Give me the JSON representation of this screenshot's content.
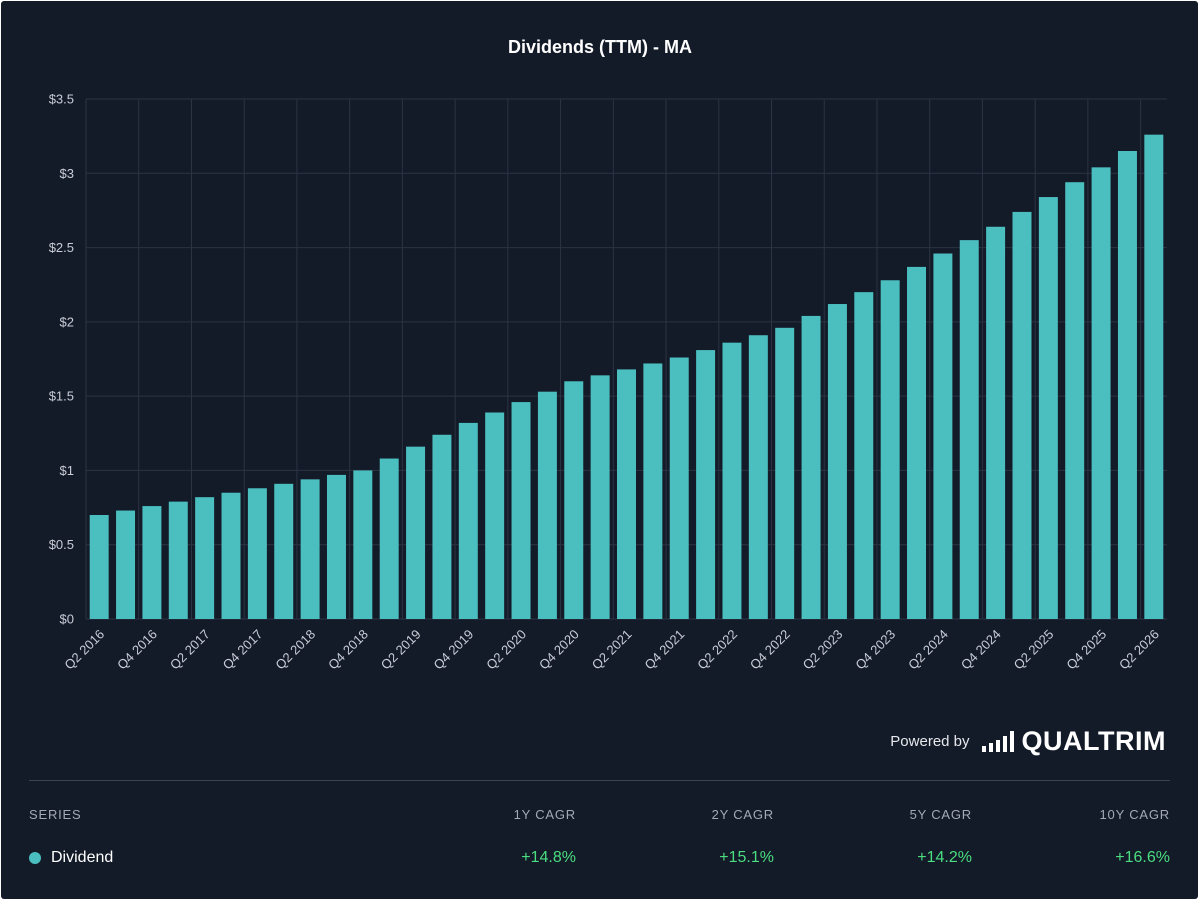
{
  "chart_data": {
    "type": "bar",
    "title": "Dividends (TTM) - MA",
    "xlabel": "",
    "ylabel": "",
    "ylim": [
      0,
      3.5
    ],
    "yticks": [
      0,
      0.5,
      1,
      1.5,
      2,
      2.5,
      3,
      3.5
    ],
    "ytick_labels": [
      "$0",
      "$0.5",
      "$1",
      "$1.5",
      "$2",
      "$2.5",
      "$3",
      "$3.5"
    ],
    "grid": true,
    "bar_color": "#4bbfbf",
    "categories": [
      "Q2 2016",
      "Q3 2016",
      "Q4 2016",
      "Q1 2017",
      "Q2 2017",
      "Q3 2017",
      "Q4 2017",
      "Q1 2018",
      "Q2 2018",
      "Q3 2018",
      "Q4 2018",
      "Q1 2019",
      "Q2 2019",
      "Q3 2019",
      "Q4 2019",
      "Q1 2020",
      "Q2 2020",
      "Q3 2020",
      "Q4 2020",
      "Q1 2021",
      "Q2 2021",
      "Q3 2021",
      "Q4 2021",
      "Q1 2022",
      "Q2 2022",
      "Q3 2022",
      "Q4 2022",
      "Q1 2023",
      "Q2 2023",
      "Q3 2023",
      "Q4 2023",
      "Q1 2024",
      "Q2 2024",
      "Q3 2024",
      "Q4 2024",
      "Q1 2025",
      "Q2 2025",
      "Q3 2025",
      "Q4 2025",
      "Q1 2026",
      "Q2 2026"
    ],
    "visible_tick_labels": [
      "Q2 2016",
      "Q4 2016",
      "Q2 2017",
      "Q4 2017",
      "Q2 2018",
      "Q4 2018",
      "Q2 2019",
      "Q4 2019",
      "Q2 2020",
      "Q4 2020",
      "Q2 2021",
      "Q4 2021",
      "Q2 2022",
      "Q4 2022",
      "Q2 2023",
      "Q4 2023",
      "Q2 2024",
      "Q4 2024",
      "Q2 2025",
      "Q4 2025",
      "Q2 2026"
    ],
    "series": [
      {
        "name": "Dividend",
        "values": [
          0.7,
          0.73,
          0.76,
          0.79,
          0.82,
          0.85,
          0.88,
          0.91,
          0.94,
          0.97,
          1.0,
          1.08,
          1.16,
          1.24,
          1.32,
          1.39,
          1.46,
          1.53,
          1.6,
          1.64,
          1.68,
          1.72,
          1.76,
          1.81,
          1.86,
          1.91,
          1.96,
          2.04,
          2.12,
          2.2,
          2.28,
          2.37,
          2.46,
          2.55,
          2.64,
          2.74,
          2.84,
          2.94,
          3.04,
          3.15,
          3.26
        ]
      }
    ]
  },
  "branding": {
    "powered_by": "Powered by",
    "logo_text": "QUALTRIM"
  },
  "cagr_table": {
    "headers": {
      "series": "SERIES",
      "y1": "1Y CAGR",
      "y2": "2Y CAGR",
      "y5": "5Y CAGR",
      "y10": "10Y CAGR"
    },
    "rows": [
      {
        "series": "Dividend",
        "color": "#4bbfbf",
        "y1": "+14.8%",
        "y2": "+15.1%",
        "y5": "+14.2%",
        "y10": "+16.6%"
      }
    ]
  }
}
